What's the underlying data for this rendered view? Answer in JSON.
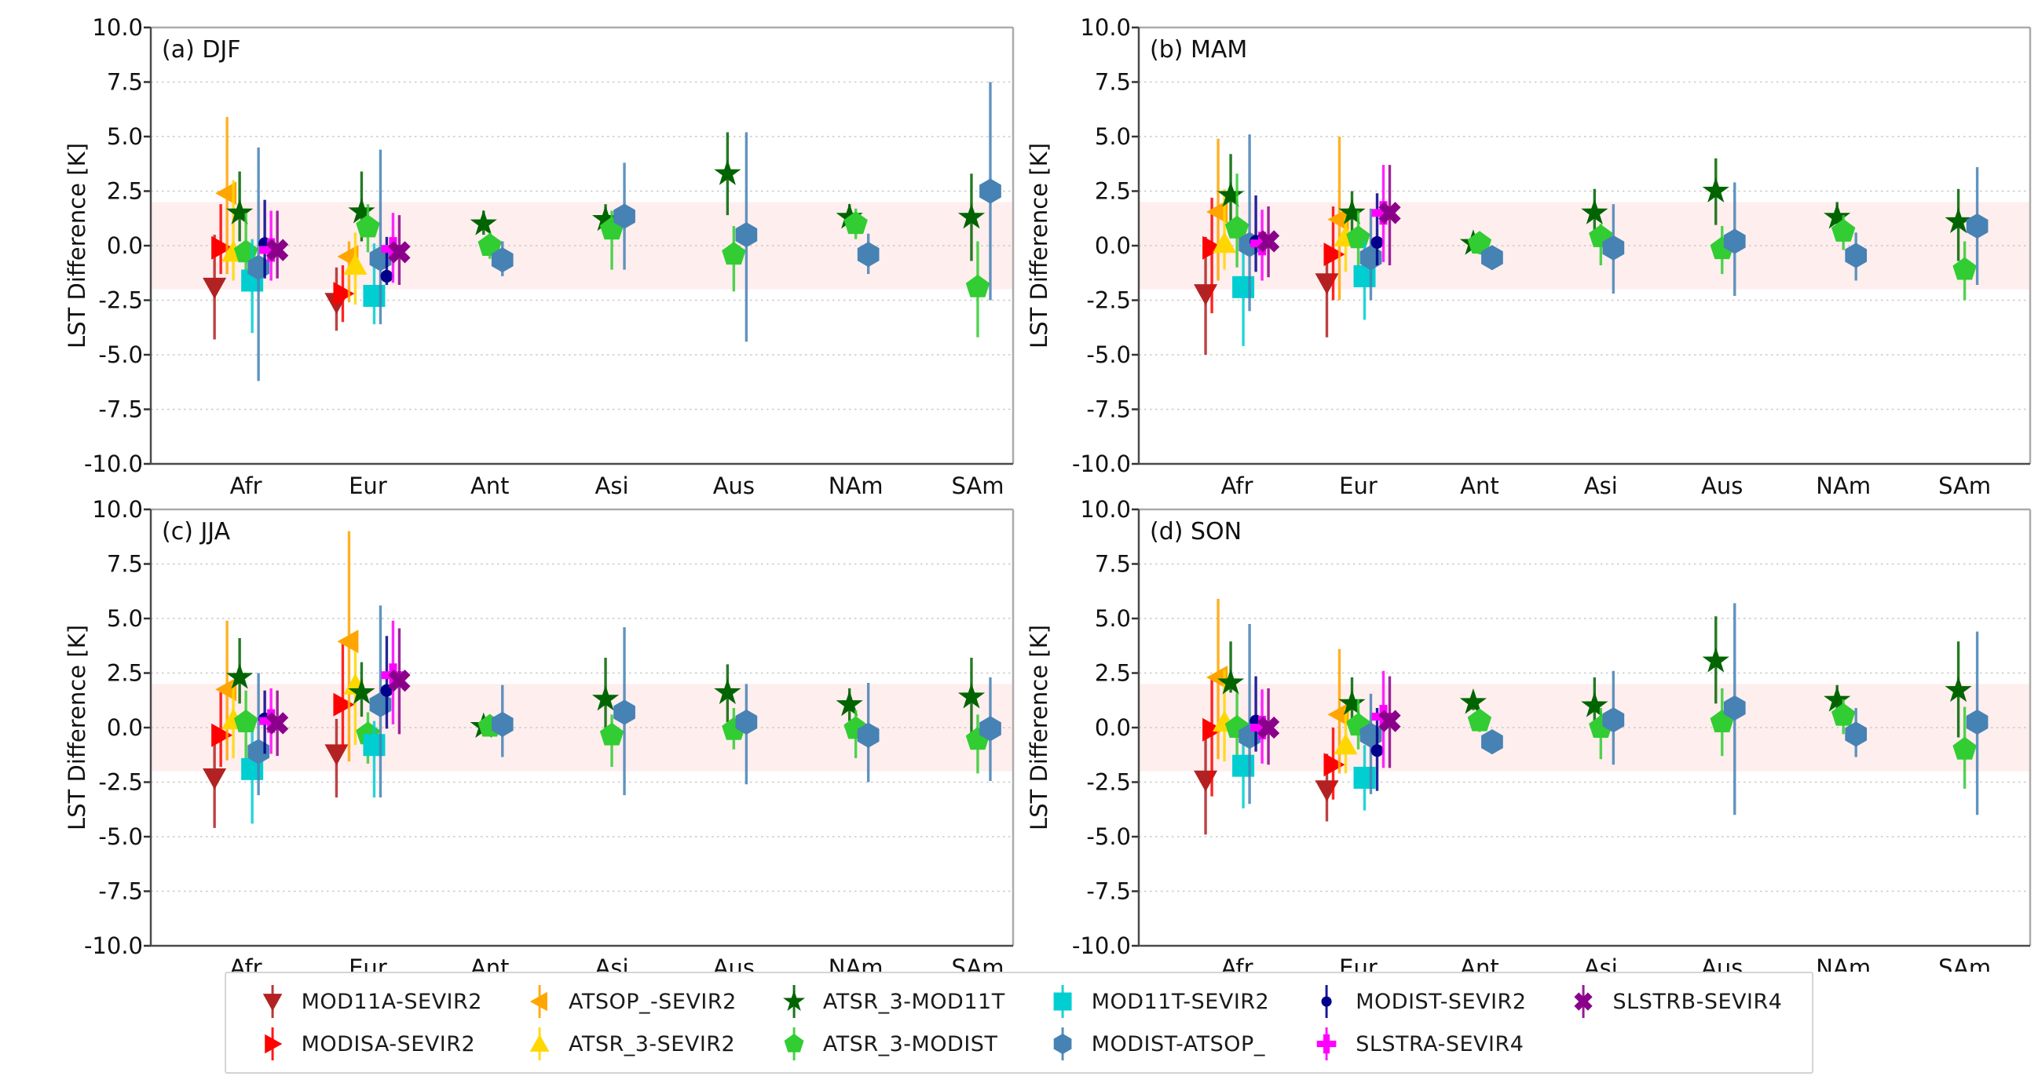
{
  "figure": {
    "ylabel": "LST Difference [K]",
    "ylim": [
      -10.0,
      10.0
    ],
    "yticks": [
      10.0,
      7.5,
      5.0,
      2.5,
      0.0,
      -2.5,
      -5.0,
      -7.5,
      -10.0
    ],
    "categories": [
      "Afr",
      "Eur",
      "Ant",
      "Asi",
      "Aus",
      "NAm",
      "SAm"
    ],
    "grid": "dashed-horizontal",
    "band": {
      "lo": -2.0,
      "hi": 2.0,
      "color": "rgba(255,0,0,0.065)"
    },
    "legend_position": "bottom-center"
  },
  "series": [
    {
      "name": "MOD11A-SEVIR2",
      "color": "#B22222",
      "marker": "triangle-down"
    },
    {
      "name": "MODISA-SEVIR2",
      "color": "#FF0000",
      "marker": "triangle-right"
    },
    {
      "name": "ATSOP_-SEVIR2",
      "color": "#FFA500",
      "marker": "triangle-left"
    },
    {
      "name": "ATSR_3-SEVIR2",
      "color": "#FFD700",
      "marker": "triangle-up"
    },
    {
      "name": "ATSR_3-MOD11T",
      "color": "#006400",
      "marker": "star"
    },
    {
      "name": "ATSR_3-MODIST",
      "color": "#32CD32",
      "marker": "pentagon"
    },
    {
      "name": "MOD11T-SEVIR2",
      "color": "#00CED1",
      "marker": "square"
    },
    {
      "name": "MODIST-ATSOP_",
      "color": "#4682B4",
      "marker": "hexagon"
    },
    {
      "name": "MODIST-SEVIR2",
      "color": "#00008B",
      "marker": "dot"
    },
    {
      "name": "SLSTRA-SEVIR4",
      "color": "#FF00FF",
      "marker": "plus"
    },
    {
      "name": "SLSTRB-SEVIR4",
      "color": "#8B008B",
      "marker": "x"
    }
  ],
  "legend_columns": [
    [
      0,
      1
    ],
    [
      2,
      3
    ],
    [
      4,
      5
    ],
    [
      6,
      7
    ],
    [
      8,
      9
    ],
    [
      10
    ]
  ],
  "chart_data": [
    {
      "type": "scatter",
      "title": "(a) DJF",
      "points": {
        "Afr": [
          [
            -1.9,
            -4.3,
            0.5
          ],
          [
            -0.1,
            -1.3,
            1.9
          ],
          [
            2.4,
            -1.3,
            5.9
          ],
          [
            -0.3,
            -1.6,
            3.0
          ],
          [
            1.5,
            0.2,
            3.4
          ],
          [
            -0.3,
            -1.7,
            1.5
          ],
          [
            -1.6,
            -4.0,
            0.3
          ],
          [
            -1.0,
            -6.2,
            4.5
          ],
          [
            0.1,
            -1.5,
            2.1
          ],
          [
            -0.2,
            -1.6,
            1.6
          ],
          [
            -0.2,
            -1.5,
            1.6
          ]
        ],
        "Eur": [
          [
            -2.6,
            -3.9,
            -1.0
          ],
          [
            -2.2,
            -3.5,
            -0.9
          ],
          [
            -0.5,
            -2.6,
            0.2
          ],
          [
            -0.9,
            -2.7,
            0.6
          ],
          [
            1.55,
            0.2,
            3.4
          ],
          [
            0.85,
            -0.3,
            1.9
          ],
          [
            -2.3,
            -3.6,
            0.1
          ],
          [
            -0.6,
            -3.6,
            4.4
          ],
          [
            -1.4,
            -1.8,
            0.4
          ],
          [
            -0.15,
            -1.7,
            1.5
          ],
          [
            -0.3,
            -1.8,
            1.4
          ]
        ],
        "Ant": [
          null,
          null,
          null,
          null,
          [
            1.0,
            0.5,
            1.6
          ],
          [
            0.0,
            -0.6,
            0.6
          ],
          null,
          [
            -0.65,
            -1.4,
            0.2
          ],
          null,
          null,
          null
        ],
        "Asi": [
          null,
          null,
          null,
          null,
          [
            1.2,
            0.6,
            1.9
          ],
          [
            0.75,
            -1.1,
            1.6
          ],
          null,
          [
            1.35,
            -1.1,
            3.8
          ],
          null,
          null,
          null
        ],
        "Aus": [
          null,
          null,
          null,
          null,
          [
            3.3,
            1.4,
            5.2
          ],
          [
            -0.4,
            -2.1,
            0.9
          ],
          null,
          [
            0.5,
            -4.4,
            5.2
          ],
          null,
          null,
          null
        ],
        "NAm": [
          null,
          null,
          null,
          null,
          [
            1.3,
            0.8,
            1.9
          ],
          [
            1.0,
            0.3,
            1.7
          ],
          null,
          [
            -0.4,
            -1.3,
            0.55
          ],
          null,
          null,
          null
        ],
        "SAm": [
          null,
          null,
          null,
          null,
          [
            1.3,
            -0.7,
            3.3
          ],
          [
            -1.9,
            -4.2,
            0.2
          ],
          null,
          [
            2.5,
            -2.5,
            7.5
          ],
          null,
          null,
          null
        ]
      }
    },
    {
      "type": "scatter",
      "title": "(b) MAM",
      "points": {
        "Afr": [
          [
            -2.2,
            -5.0,
            0.4
          ],
          [
            -0.1,
            -3.1,
            2.2
          ],
          [
            1.55,
            -1.6,
            4.9
          ],
          [
            0.1,
            -1.1,
            2.6
          ],
          [
            2.3,
            0.9,
            4.2
          ],
          [
            0.8,
            -1.0,
            3.3
          ],
          [
            -1.9,
            -4.6,
            0.1
          ],
          [
            0.05,
            -3.0,
            5.1
          ],
          [
            0.2,
            -1.2,
            2.3
          ],
          [
            0.1,
            -1.6,
            1.65
          ],
          [
            0.2,
            -1.45,
            1.8
          ]
        ],
        "Eur": [
          [
            -1.7,
            -4.2,
            -0.3
          ],
          [
            -0.4,
            -2.5,
            1.8
          ],
          [
            1.2,
            -2.5,
            5.0
          ],
          [
            0.4,
            -1.2,
            1.3
          ],
          [
            1.5,
            0.6,
            2.5
          ],
          [
            0.35,
            -1.0,
            1.6
          ],
          [
            -1.4,
            -3.4,
            0.2
          ],
          [
            -0.55,
            -2.5,
            1.7
          ],
          [
            0.15,
            -0.9,
            2.4
          ],
          [
            1.5,
            -0.75,
            3.7
          ],
          [
            1.5,
            -0.9,
            3.7
          ]
        ],
        "Ant": [
          null,
          null,
          null,
          null,
          [
            0.1,
            -0.3,
            0.5
          ],
          [
            0.1,
            -0.4,
            0.5
          ],
          null,
          [
            -0.55,
            -1.1,
            0.0
          ],
          null,
          null,
          null
        ],
        "Asi": [
          null,
          null,
          null,
          null,
          [
            1.5,
            0.7,
            2.6
          ],
          [
            0.4,
            -0.9,
            1.0
          ],
          null,
          [
            -0.1,
            -2.2,
            1.9
          ],
          null,
          null,
          null
        ],
        "Aus": [
          null,
          null,
          null,
          null,
          [
            2.5,
            0.95,
            4.0
          ],
          [
            -0.15,
            -1.3,
            0.9
          ],
          null,
          [
            0.2,
            -2.3,
            2.9
          ],
          null,
          null,
          null
        ],
        "NAm": [
          null,
          null,
          null,
          null,
          [
            1.3,
            0.7,
            2.0
          ],
          [
            0.65,
            -0.2,
            1.4
          ],
          null,
          [
            -0.45,
            -1.6,
            0.6
          ],
          null,
          null,
          null
        ],
        "SAm": [
          null,
          null,
          null,
          null,
          [
            1.1,
            -0.7,
            2.6
          ],
          [
            -1.1,
            -2.5,
            0.2
          ],
          null,
          [
            0.9,
            -1.8,
            3.6
          ],
          null,
          null,
          null
        ]
      }
    },
    {
      "type": "scatter",
      "title": "(c) JJA",
      "points": {
        "Afr": [
          [
            -2.3,
            -4.6,
            -0.3
          ],
          [
            -0.35,
            -1.8,
            1.75
          ],
          [
            1.75,
            -1.5,
            4.9
          ],
          [
            0.35,
            -1.4,
            2.05
          ],
          [
            2.3,
            1.1,
            4.1
          ],
          [
            0.25,
            -1.65,
            1.7
          ],
          [
            -1.9,
            -4.4,
            -0.2
          ],
          [
            -1.1,
            -3.1,
            2.5
          ],
          [
            0.4,
            -1.2,
            1.7
          ],
          [
            0.3,
            -1.2,
            1.8
          ],
          [
            0.2,
            -1.3,
            1.7
          ]
        ],
        "Eur": [
          [
            -1.2,
            -3.2,
            0.4
          ],
          [
            1.05,
            -0.95,
            3.95
          ],
          [
            3.95,
            -1.55,
            9.0
          ],
          [
            1.95,
            -0.8,
            3.5
          ],
          [
            1.6,
            0.5,
            3.0
          ],
          [
            -0.3,
            -1.65,
            0.7
          ],
          [
            -0.8,
            -3.2,
            0.3
          ],
          [
            1.05,
            -3.2,
            5.6
          ],
          [
            1.7,
            -0.05,
            4.2
          ],
          [
            2.4,
            0.15,
            4.9
          ],
          [
            2.15,
            -0.3,
            4.55
          ]
        ],
        "Ant": [
          null,
          null,
          null,
          null,
          [
            0.05,
            -0.3,
            0.4
          ],
          [
            0.05,
            -0.4,
            0.5
          ],
          null,
          [
            0.15,
            -1.35,
            1.95
          ],
          null,
          null,
          null
        ],
        "Asi": [
          null,
          null,
          null,
          null,
          [
            1.3,
            -0.1,
            3.2
          ],
          [
            -0.35,
            -1.8,
            0.6
          ],
          null,
          [
            0.7,
            -3.1,
            4.6
          ],
          null,
          null,
          null
        ],
        "Aus": [
          null,
          null,
          null,
          null,
          [
            1.6,
            0.25,
            2.9
          ],
          [
            -0.1,
            -1.0,
            0.9
          ],
          null,
          [
            0.25,
            -2.6,
            2.0
          ],
          null,
          null,
          null
        ],
        "NAm": [
          null,
          null,
          null,
          null,
          [
            1.05,
            0.3,
            1.8
          ],
          [
            -0.05,
            -1.4,
            0.8
          ],
          null,
          [
            -0.35,
            -2.5,
            2.05
          ],
          null,
          null,
          null
        ],
        "SAm": [
          null,
          null,
          null,
          null,
          [
            1.4,
            -0.3,
            3.2
          ],
          [
            -0.55,
            -2.1,
            0.6
          ],
          null,
          [
            -0.05,
            -2.45,
            2.3
          ],
          null,
          null,
          null
        ]
      }
    },
    {
      "type": "scatter",
      "title": "(d) SON",
      "points": {
        "Afr": [
          [
            -2.4,
            -4.9,
            -0.3
          ],
          [
            -0.1,
            -3.15,
            2.3
          ],
          [
            2.3,
            -1.45,
            5.9
          ],
          [
            0.25,
            -1.55,
            2.65
          ],
          [
            2.05,
            1.6,
            3.95
          ],
          [
            0.0,
            -1.3,
            1.6
          ],
          [
            -1.75,
            -3.7,
            -0.1
          ],
          [
            -0.4,
            -3.5,
            4.75
          ],
          [
            0.3,
            -1.1,
            2.35
          ],
          [
            0.0,
            -1.65,
            1.75
          ],
          [
            0.0,
            -1.7,
            1.8
          ]
        ],
        "Eur": [
          [
            -2.85,
            -4.3,
            -1.2
          ],
          [
            -1.7,
            -3.3,
            0.0
          ],
          [
            0.6,
            -2.1,
            3.6
          ],
          [
            -0.8,
            -2.1,
            0.9
          ],
          [
            1.1,
            -0.1,
            2.3
          ],
          [
            0.1,
            -1.0,
            1.3
          ],
          [
            -2.3,
            -3.8,
            -0.8
          ],
          [
            -0.35,
            -3.05,
            1.55
          ],
          [
            -1.05,
            -2.9,
            0.9
          ],
          [
            0.5,
            -1.85,
            2.6
          ],
          [
            0.3,
            -1.85,
            2.35
          ]
        ],
        "Ant": [
          null,
          null,
          null,
          null,
          [
            1.15,
            0.8,
            1.5
          ],
          [
            0.3,
            -0.2,
            0.8
          ],
          null,
          [
            -0.65,
            -1.2,
            -0.1
          ],
          null,
          null,
          null
        ],
        "Asi": [
          null,
          null,
          null,
          null,
          [
            1.0,
            0.3,
            2.3
          ],
          [
            0.0,
            -1.45,
            0.9
          ],
          null,
          [
            0.35,
            -1.7,
            2.6
          ],
          null,
          null,
          null
        ],
        "Aus": [
          null,
          null,
          null,
          null,
          [
            3.05,
            1.1,
            5.1
          ],
          [
            0.25,
            -1.3,
            1.8
          ],
          null,
          [
            0.9,
            -4.0,
            5.7
          ],
          null,
          null,
          null
        ],
        "NAm": [
          null,
          null,
          null,
          null,
          [
            1.25,
            0.55,
            1.95
          ],
          [
            0.55,
            -0.3,
            1.3
          ],
          null,
          [
            -0.3,
            -1.35,
            0.9
          ],
          null,
          null,
          null
        ],
        "SAm": [
          null,
          null,
          null,
          null,
          [
            1.7,
            -0.45,
            3.95
          ],
          [
            -1.0,
            -2.8,
            0.95
          ],
          null,
          [
            0.25,
            -4.0,
            4.4
          ],
          null,
          null,
          null
        ]
      }
    }
  ]
}
